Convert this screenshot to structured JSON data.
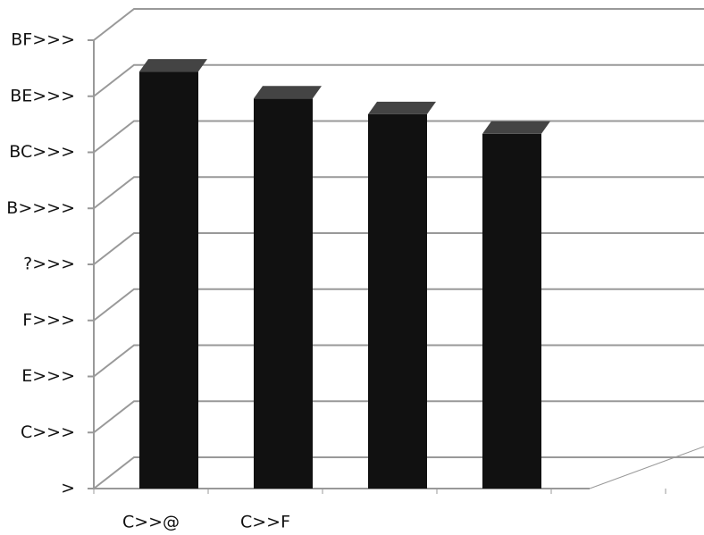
{
  "chart_data": {
    "type": "bar",
    "categories": [
      "C>>@",
      "C>>F",
      null,
      null
    ],
    "values": [
      7.44,
      6.96,
      6.68,
      6.33
    ],
    "color": "#111111",
    "ylim": [
      0,
      8
    ],
    "yticks": [
      {
        "value": 0,
        "label": ">"
      },
      {
        "value": 1,
        "label": "C>>>"
      },
      {
        "value": 2,
        "label": "E>>>"
      },
      {
        "value": 3,
        "label": "F>>>"
      },
      {
        "value": 4,
        "label": "?>>>"
      },
      {
        "value": 5,
        "label": "B>>>>"
      },
      {
        "value": 6,
        "label": "BC>>>"
      },
      {
        "value": 7,
        "label": "BE>>>"
      },
      {
        "value": 8,
        "label": "BF>>>"
      }
    ],
    "grid": true
  }
}
